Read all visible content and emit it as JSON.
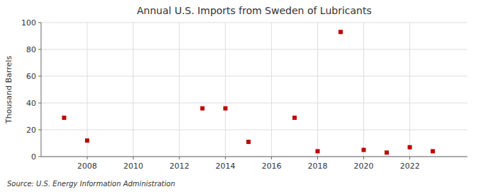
{
  "chart_data": {
    "type": "scatter",
    "title": "Annual U.S. Imports from Sweden of Lubricants",
    "ylabel": "Thousand Barrels",
    "source": "Source: U.S. Energy Information Administration",
    "x": [
      2007,
      2008,
      2013,
      2014,
      2015,
      2017,
      2018,
      2019,
      2020,
      2021,
      2022,
      2023
    ],
    "values": [
      29,
      12,
      36,
      36,
      11,
      29,
      4,
      93,
      5,
      3,
      7,
      4
    ],
    "color": "#c00000",
    "marker": "square",
    "xlim": [
      2006.0,
      2024.5
    ],
    "ylim": [
      0,
      100
    ],
    "xticks": [
      2008,
      2010,
      2012,
      2014,
      2016,
      2018,
      2020,
      2022
    ],
    "yticks": [
      0,
      20,
      40,
      60,
      80,
      100
    ],
    "grid": true
  }
}
